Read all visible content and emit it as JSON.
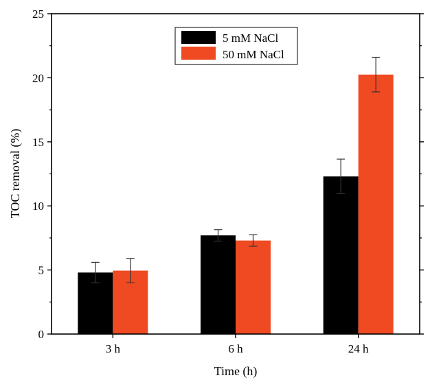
{
  "chart_data": {
    "type": "bar",
    "categories": [
      "3 h",
      "6 h",
      "24 h"
    ],
    "series": [
      {
        "name": "5 mM NaCl",
        "values": [
          4.8,
          7.7,
          12.3
        ],
        "errors": [
          0.8,
          0.45,
          1.35
        ],
        "color": "#000000"
      },
      {
        "name": "50 mM NaCl",
        "values": [
          4.95,
          7.3,
          20.25
        ],
        "errors": [
          0.95,
          0.45,
          1.35
        ],
        "color": "#f04a23"
      }
    ],
    "xlabel": "Time (h)",
    "ylabel": "TOC removal (%)",
    "ylim": [
      0,
      25
    ],
    "yticks": [
      "0",
      "5",
      "10",
      "15",
      "20",
      "25"
    ],
    "grid": false,
    "legend_position": "top-center"
  }
}
